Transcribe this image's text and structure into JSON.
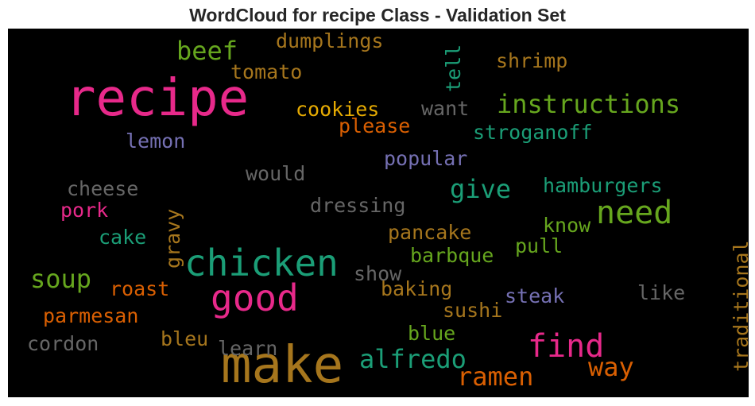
{
  "title": "WordCloud for recipe Class - Validation Set",
  "words": [
    {
      "text": "recipe",
      "color": "#e7298a"
    },
    {
      "text": "make",
      "color": "#a6761d"
    },
    {
      "text": "chicken",
      "color": "#1b9e77"
    },
    {
      "text": "good",
      "color": "#e7298a"
    },
    {
      "text": "find",
      "color": "#e7298a"
    },
    {
      "text": "need",
      "color": "#66a61e"
    },
    {
      "text": "instructions",
      "color": "#66a61e"
    },
    {
      "text": "beef",
      "color": "#66a61e"
    },
    {
      "text": "alfredo",
      "color": "#1b9e77"
    },
    {
      "text": "give",
      "color": "#1b9e77"
    },
    {
      "text": "soup",
      "color": "#66a61e"
    },
    {
      "text": "ramen",
      "color": "#d95f02"
    },
    {
      "text": "way",
      "color": "#d95f02"
    },
    {
      "text": "dumplings",
      "color": "#a6761d"
    },
    {
      "text": "shrimp",
      "color": "#a6761d"
    },
    {
      "text": "tomato",
      "color": "#a6761d"
    },
    {
      "text": "tell",
      "color": "#1b9e77"
    },
    {
      "text": "cookies",
      "color": "#e6ab02"
    },
    {
      "text": "want",
      "color": "#666666"
    },
    {
      "text": "please",
      "color": "#d95f02"
    },
    {
      "text": "stroganoff",
      "color": "#1b9e77"
    },
    {
      "text": "lemon",
      "color": "#7570b3"
    },
    {
      "text": "popular",
      "color": "#7570b3"
    },
    {
      "text": "would",
      "color": "#666666"
    },
    {
      "text": "hamburgers",
      "color": "#1b9e77"
    },
    {
      "text": "cheese",
      "color": "#666666"
    },
    {
      "text": "dressing",
      "color": "#666666"
    },
    {
      "text": "pork",
      "color": "#e7298a"
    },
    {
      "text": "gravy",
      "color": "#a6761d"
    },
    {
      "text": "know",
      "color": "#66a61e"
    },
    {
      "text": "cake",
      "color": "#1b9e77"
    },
    {
      "text": "pancake",
      "color": "#a6761d"
    },
    {
      "text": "pull",
      "color": "#66a61e"
    },
    {
      "text": "barbque",
      "color": "#66a61e"
    },
    {
      "text": "traditional",
      "color": "#a6761d"
    },
    {
      "text": "show",
      "color": "#666666"
    },
    {
      "text": "roast",
      "color": "#d95f02"
    },
    {
      "text": "baking",
      "color": "#a6761d"
    },
    {
      "text": "like",
      "color": "#666666"
    },
    {
      "text": "steak",
      "color": "#7570b3"
    },
    {
      "text": "sushi",
      "color": "#a6761d"
    },
    {
      "text": "parmesan",
      "color": "#d95f02"
    },
    {
      "text": "blue",
      "color": "#66a61e"
    },
    {
      "text": "bleu",
      "color": "#a6761d"
    },
    {
      "text": "cordon",
      "color": "#666666"
    },
    {
      "text": "learn",
      "color": "#666666"
    }
  ]
}
